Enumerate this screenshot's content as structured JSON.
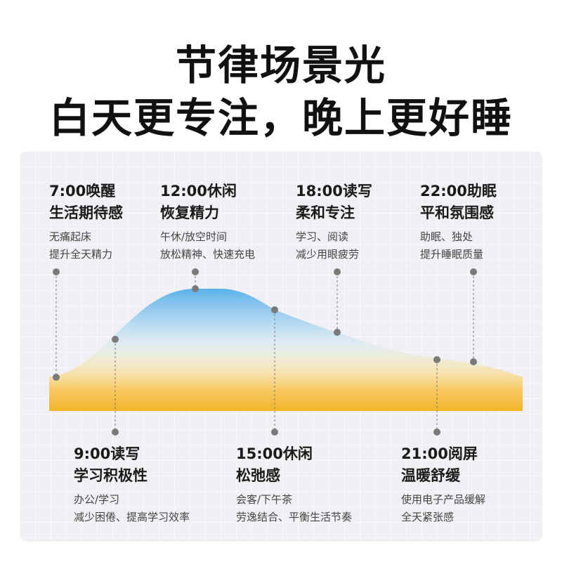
{
  "header": {
    "line1": "节律场景光",
    "line2": "白天更专注，晚上更好睡"
  },
  "colors": {
    "title": "#111111",
    "panel_bg": "#f0eff3",
    "curve_top": "#3aa2e6",
    "curve_bottom": "#f2b52a",
    "marker": "#7a7a7a"
  },
  "top_labels": [
    {
      "time": "7:00唤醒",
      "title": "生活期待感",
      "desc1": "无痛起床",
      "desc2": "提升全天精力"
    },
    {
      "time": "12:00休闲",
      "title": "恢复精力",
      "desc1": "午休/放空时间",
      "desc2": "放松精神、快速充电"
    },
    {
      "time": "18:00读写",
      "title": "柔和专注",
      "desc1": "学习、阅读",
      "desc2": "减少用眼疲劳"
    },
    {
      "time": "22:00助眠",
      "title": "平和氛围感",
      "desc1": "助眠、独处",
      "desc2": "提升睡眠质量"
    }
  ],
  "bottom_labels": [
    {
      "time": "9:00读写",
      "title": "学习积极性",
      "desc1": "办公/学习",
      "desc2": "减少困倦、提高学习效率"
    },
    {
      "time": "15:00休闲",
      "title": "松弛感",
      "desc1": "会客/下午茶",
      "desc2": "劳逸结合、平衡生活节奏"
    },
    {
      "time": "21:00阅屏",
      "title": "温暖舒缓",
      "desc1": "使用电子产品缓解",
      "desc2": "全天紧张感"
    }
  ]
}
